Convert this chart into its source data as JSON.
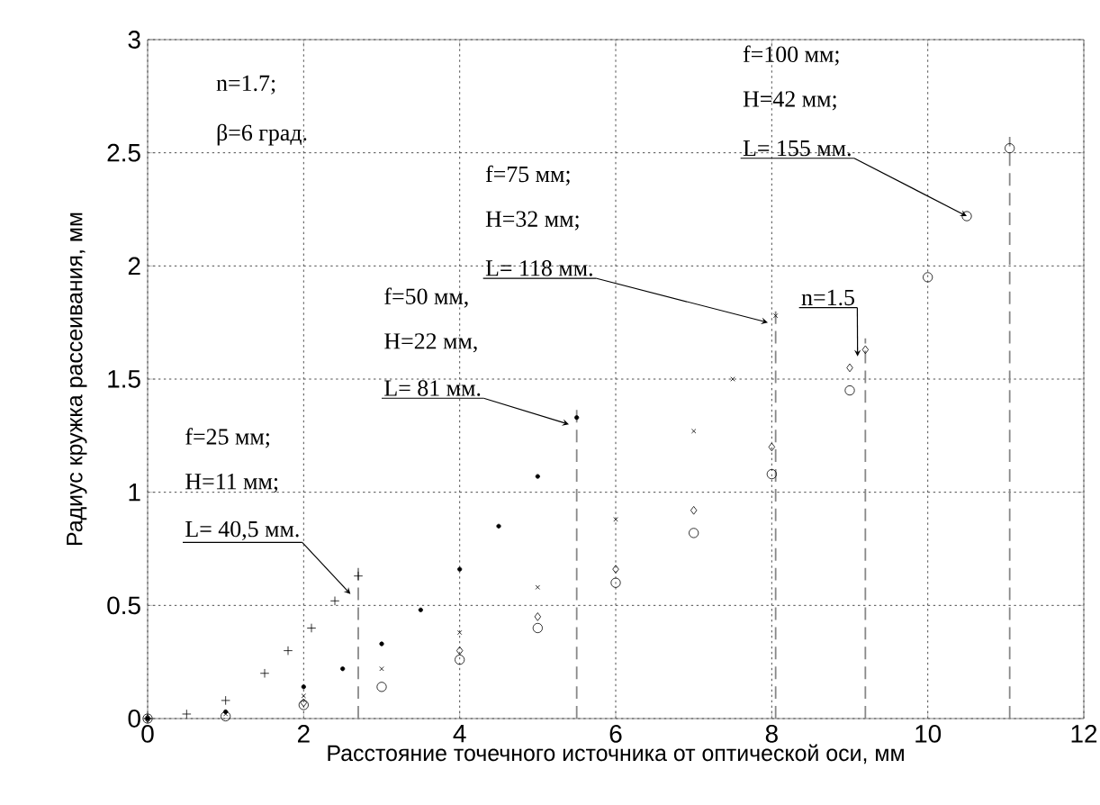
{
  "chart_data": {
    "type": "scatter",
    "xlabel": "Расстояние точечного источника от оптической оси,  мм",
    "ylabel": "Радиус кружка рассеивания, мм",
    "xlim": [
      0,
      12
    ],
    "ylim": [
      0,
      3
    ],
    "xticks": [
      0,
      2,
      4,
      6,
      8,
      10,
      12
    ],
    "yticks": [
      0,
      0.5,
      1,
      1.5,
      2,
      2.5,
      3
    ],
    "grid": true,
    "series": [
      {
        "color": "#000000",
        "marker": "cross",
        "x": [
          0,
          0.5,
          1,
          1.5,
          1.8,
          2.1,
          2.4,
          2.7
        ],
        "values": [
          0,
          0.02,
          0.08,
          0.2,
          0.3,
          0.4,
          0.52,
          0.63
        ]
      },
      {
        "color": "#000000",
        "x": [
          0,
          1,
          2,
          2.5,
          3,
          3.5,
          4,
          4.5,
          5,
          5.5
        ],
        "values": [
          0,
          0.03,
          0.14,
          0.22,
          0.33,
          0.48,
          0.66,
          0.85,
          1.07,
          1.33
        ]
      },
      {
        "color": "#000000",
        "x": [
          0,
          1,
          2,
          3,
          4,
          5,
          6,
          7,
          7.5,
          8.05
        ],
        "values": [
          0,
          0.02,
          0.1,
          0.22,
          0.38,
          0.58,
          0.88,
          1.27,
          1.5,
          1.78
        ]
      },
      {
        "color": "#000000",
        "x": [
          0,
          2,
          4,
          5,
          6,
          7,
          8,
          9,
          9.2
        ],
        "values": [
          0,
          0.07,
          0.3,
          0.45,
          0.66,
          0.92,
          1.2,
          1.55,
          1.63
        ]
      },
      {
        "color": "#000000",
        "x": [
          0,
          1,
          2,
          3,
          4,
          5,
          6,
          7,
          8,
          9,
          10,
          10.5,
          11.05
        ],
        "values": [
          0,
          0.01,
          0.06,
          0.14,
          0.26,
          0.4,
          0.6,
          0.82,
          1.08,
          1.45,
          1.95,
          2.22,
          2.52
        ]
      }
    ],
    "ref_lines": [
      {
        "axis": "x",
        "value": 2.7,
        "color": "#888888",
        "line_style": "dashed"
      },
      {
        "axis": "x",
        "value": 5.5,
        "color": "#888888",
        "line_style": "dashed"
      },
      {
        "axis": "x",
        "value": 8.05,
        "color": "#888888",
        "line_style": "dashed"
      },
      {
        "axis": "x",
        "value": 9.2,
        "color": "#888888",
        "line_style": "dashed"
      },
      {
        "axis": "x",
        "value": 11.05,
        "color": "#888888",
        "line_style": "dashed"
      }
    ],
    "annotations": [
      "n=1.7;",
      "β=6 град.",
      "f=25 мм;",
      "H=11 мм;",
      {
        "text": "L= 40,5 мм.",
        "x": 2.6,
        "y": 0.55
      },
      "f=50 мм,",
      "H=22 мм,",
      {
        "text": "L= 81 мм.",
        "x": 5.4,
        "y": 1.3
      },
      "f=75 мм;",
      "H=32 мм;",
      {
        "text": "L= 118 мм.",
        "x": 7.95,
        "y": 1.75
      },
      "f=100 мм;",
      "H=42 мм;",
      {
        "text": "L= 155 мм.",
        "x": 10.5,
        "y": 2.22
      },
      {
        "text": "n=1.5",
        "x": 9.1,
        "y": 1.6
      }
    ]
  }
}
